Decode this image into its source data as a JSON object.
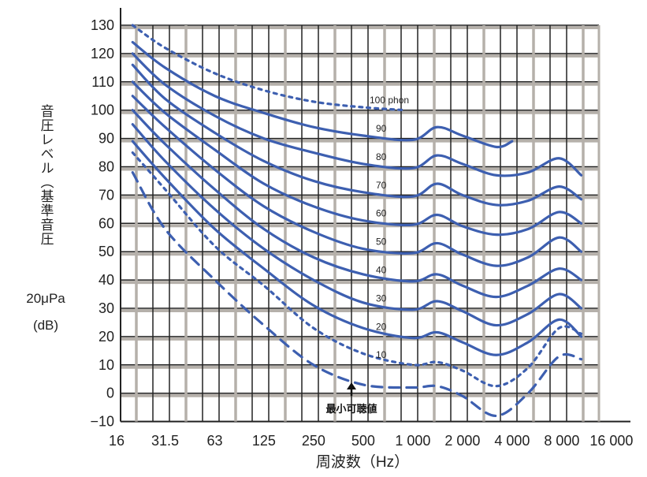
{
  "chart_data": {
    "type": "line",
    "title": "",
    "xlabel": "周波数（Hz）",
    "ylabel_vertical": "音圧レベル（基準音圧",
    "ylabel_line2": "20μPa",
    "ylabel_line3": "(dB)",
    "x_scale": "log",
    "xlim": [
      16,
      13000
    ],
    "ylim": [
      -10,
      130
    ],
    "grid": true,
    "x_ticks": [
      16,
      31.5,
      63,
      125,
      250,
      500,
      1000,
      2000,
      4000,
      8000,
      16000
    ],
    "x_tick_labels": [
      "16",
      "31.5",
      "63",
      "125",
      "250",
      "500",
      "1 000",
      "2 000",
      "4 000",
      "8 000",
      "16 000"
    ],
    "y_ticks": [
      130,
      120,
      110,
      100,
      90,
      80,
      70,
      60,
      50,
      40,
      30,
      20,
      10,
      0,
      -10
    ],
    "y_tick_labels": [
      "130",
      "120",
      "110",
      "100",
      "90",
      "80",
      "70",
      "60",
      "50",
      "40",
      "30",
      "20",
      "10",
      "0",
      "−10"
    ],
    "x": [
      20,
      31.5,
      63,
      125,
      250,
      500,
      1000,
      1400,
      2000,
      3200,
      5000,
      7700,
      10500
    ],
    "series": [
      {
        "name": "100 phon",
        "label": "100 phon",
        "style": "dotted",
        "x": [
          20,
          31.5,
          63,
          125,
          250,
          500,
          900
        ],
        "values": [
          130,
          122,
          113,
          107,
          103,
          101,
          100
        ]
      },
      {
        "name": "90",
        "label": "90",
        "style": "solid",
        "x": [
          20,
          31.5,
          63,
          125,
          250,
          500,
          1000,
          1400,
          2000,
          3200,
          4000
        ],
        "values": [
          124,
          115,
          105,
          99,
          94,
          91,
          89.5,
          94,
          91,
          87,
          89
        ]
      },
      {
        "name": "80",
        "label": "80",
        "style": "solid",
        "values": [
          120,
          109,
          98,
          90,
          85,
          81,
          79.5,
          84,
          81,
          77,
          78,
          83,
          77
        ]
      },
      {
        "name": "70",
        "label": "70",
        "style": "solid",
        "values": [
          116,
          104,
          92,
          82,
          75,
          71,
          69.5,
          74,
          70,
          66.5,
          68,
          73,
          68.5
        ]
      },
      {
        "name": "60",
        "label": "60",
        "style": "solid",
        "values": [
          110,
          99,
          86,
          74,
          66,
          61,
          59.5,
          63,
          59,
          56,
          58,
          64,
          60
        ]
      },
      {
        "name": "50",
        "label": "50",
        "style": "solid",
        "values": [
          105,
          94,
          79,
          66,
          57,
          51,
          49.5,
          53,
          49,
          45,
          48,
          55,
          50
        ]
      },
      {
        "name": "40",
        "label": "40",
        "style": "solid",
        "values": [
          100,
          88,
          72,
          58,
          48,
          42,
          39.5,
          42,
          38,
          34,
          38,
          44,
          40
        ]
      },
      {
        "name": "30",
        "label": "30",
        "style": "solid",
        "values": [
          95,
          82,
          65,
          51,
          40,
          32,
          29.5,
          32.5,
          29,
          24,
          28,
          35,
          30
        ]
      },
      {
        "name": "20",
        "label": "20",
        "style": "solid",
        "values": [
          89,
          76,
          58,
          44,
          31,
          23,
          19.5,
          21.5,
          18,
          13.5,
          18,
          26,
          20
        ]
      },
      {
        "name": "10",
        "label": "10",
        "style": "dotted",
        "values": [
          85,
          72,
          52,
          38,
          23,
          14,
          10,
          11,
          8,
          2.5,
          9,
          23,
          21
        ]
      },
      {
        "name": "threshold",
        "label": "",
        "style": "dashed",
        "values": [
          78,
          58,
          40,
          24,
          10,
          3,
          2,
          2.5,
          -1,
          -8,
          0,
          13,
          12
        ]
      }
    ],
    "annotation": "最小可聴値",
    "colors": {
      "curve": "#3d5fb0",
      "grid_dark": "#222222",
      "grid_light": "#b5b0aa"
    }
  }
}
